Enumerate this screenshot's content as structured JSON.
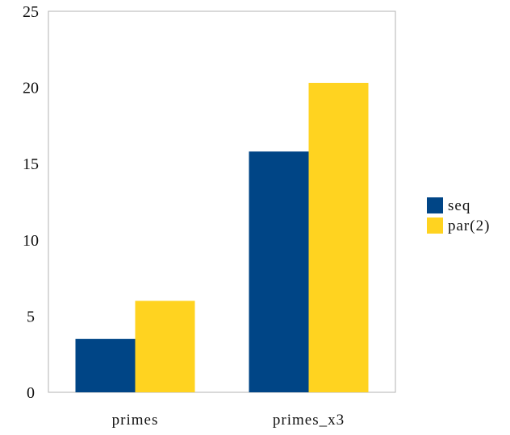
{
  "chart_data": {
    "type": "bar",
    "categories": [
      "primes",
      "primes_x3"
    ],
    "series": [
      {
        "name": "seq",
        "values": [
          3.5,
          15.8
        ],
        "color": "#004586"
      },
      {
        "name": "par(2)",
        "values": [
          6.0,
          20.3
        ],
        "color": "#FFD320"
      }
    ],
    "yticks": [
      "0",
      "5",
      "10",
      "15",
      "20",
      "25"
    ],
    "ylim": [
      0,
      25
    ],
    "grid": false,
    "legend": "right",
    "title": "",
    "xlabel": "",
    "ylabel": ""
  }
}
